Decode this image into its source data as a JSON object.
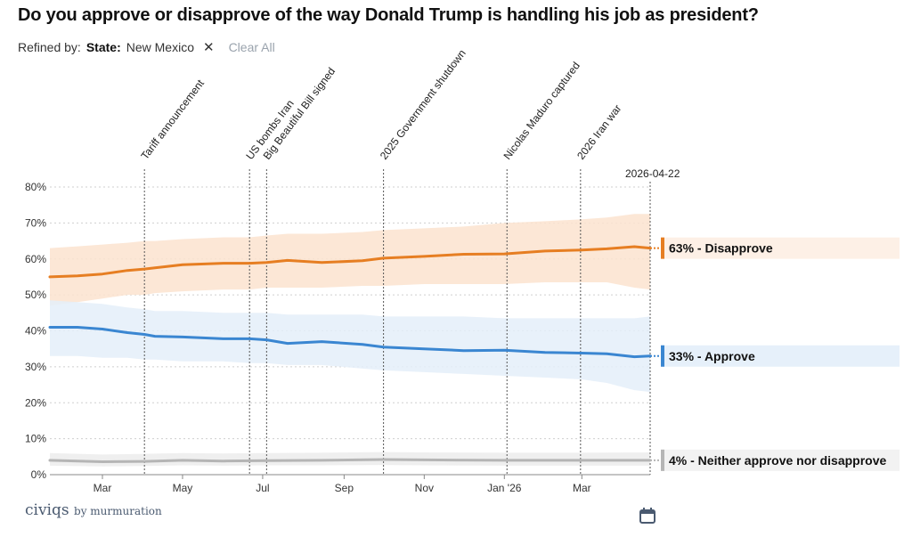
{
  "title": "Do you approve or disapprove of the way Donald Trump is handling his job as president?",
  "refine": {
    "label": "Refined by:",
    "filter_key": "State:",
    "filter_value": "New Mexico",
    "close_glyph": "✕",
    "clear_all": "Clear All"
  },
  "logo": {
    "brand": "civiqs",
    "byline": "by murmuration"
  },
  "chart_data": {
    "type": "line",
    "title": "Do you approve or disapprove of the way Donald Trump is handling his job as president?",
    "x_start": "2025-01-20",
    "x_end": "2026-04-22",
    "end_date_label": "2026-04-22",
    "ylim": [
      0,
      80
    ],
    "y_ticks": [
      0,
      10,
      20,
      30,
      40,
      50,
      60,
      70,
      80
    ],
    "y_tick_labels": [
      "0%",
      "10%",
      "20%",
      "30%",
      "40%",
      "50%",
      "60%",
      "70%",
      "80%"
    ],
    "x_ticks": [
      {
        "date": "2025-03-01",
        "label": "Mar"
      },
      {
        "date": "2025-05-01",
        "label": "May"
      },
      {
        "date": "2025-07-01",
        "label": "Jul"
      },
      {
        "date": "2025-09-01",
        "label": "Sep"
      },
      {
        "date": "2025-11-01",
        "label": "Nov"
      },
      {
        "date": "2026-01-01",
        "label": "Jan '26"
      },
      {
        "date": "2026-03-01",
        "label": "Mar"
      }
    ],
    "events": [
      {
        "date": "2025-04-02",
        "label": "Tariff announcement"
      },
      {
        "date": "2025-06-21",
        "label": "US bombs Iran"
      },
      {
        "date": "2025-07-04",
        "label": "Big Beautiful Bill signed"
      },
      {
        "date": "2025-10-01",
        "label": "2025 Government shutdown"
      },
      {
        "date": "2026-01-03",
        "label": "Nicolas Maduro captured"
      },
      {
        "date": "2026-02-28",
        "label": "2026 Iran war"
      }
    ],
    "series": [
      {
        "name": "Disapprove",
        "end_label": "63% - Disapprove",
        "color": "#e67e22",
        "band_color": "#fbe3cf",
        "label_bg": "#fdf0e6",
        "dates": [
          "2025-01-20",
          "2025-02-10",
          "2025-03-01",
          "2025-03-20",
          "2025-04-02",
          "2025-04-10",
          "2025-05-01",
          "2025-06-01",
          "2025-06-21",
          "2025-07-04",
          "2025-07-20",
          "2025-08-15",
          "2025-09-15",
          "2025-10-01",
          "2025-11-01",
          "2025-12-01",
          "2026-01-01",
          "2026-02-01",
          "2026-03-01",
          "2026-03-20",
          "2026-04-10",
          "2026-04-22"
        ],
        "values": [
          55.0,
          55.3,
          55.8,
          56.8,
          57.2,
          57.5,
          58.4,
          58.8,
          58.8,
          59.0,
          59.6,
          59.0,
          59.5,
          60.2,
          60.7,
          61.3,
          61.4,
          62.2,
          62.5,
          62.8,
          63.4,
          63.0
        ],
        "lower": [
          47.0,
          48.0,
          49.0,
          50.0,
          50.0,
          50.5,
          51.0,
          51.5,
          51.5,
          52.0,
          52.0,
          52.0,
          52.5,
          52.5,
          53.0,
          53.0,
          53.0,
          53.5,
          53.5,
          53.5,
          52.0,
          51.5
        ],
        "upper": [
          63.0,
          63.5,
          64.0,
          64.5,
          65.0,
          65.0,
          65.5,
          66.0,
          66.0,
          66.5,
          67.0,
          67.0,
          67.5,
          68.0,
          68.5,
          69.0,
          70.0,
          70.5,
          71.0,
          71.5,
          72.5,
          72.5
        ]
      },
      {
        "name": "Approve",
        "end_label": "33% - Approve",
        "color": "#3a86d1",
        "band_color": "#e4eef9",
        "label_bg": "#e6f0fa",
        "dates": [
          "2025-01-20",
          "2025-02-10",
          "2025-03-01",
          "2025-03-20",
          "2025-04-02",
          "2025-04-10",
          "2025-05-01",
          "2025-06-01",
          "2025-06-21",
          "2025-07-04",
          "2025-07-20",
          "2025-08-15",
          "2025-09-15",
          "2025-10-01",
          "2025-11-01",
          "2025-12-01",
          "2026-01-01",
          "2026-02-01",
          "2026-03-01",
          "2026-03-20",
          "2026-04-10",
          "2026-04-22"
        ],
        "values": [
          41.0,
          41.0,
          40.5,
          39.5,
          39.0,
          38.5,
          38.3,
          37.8,
          37.8,
          37.5,
          36.5,
          37.0,
          36.2,
          35.5,
          35.0,
          34.5,
          34.6,
          34.0,
          33.8,
          33.6,
          32.8,
          33.0
        ],
        "lower": [
          33.0,
          33.0,
          32.5,
          32.5,
          32.0,
          32.0,
          31.5,
          31.5,
          31.0,
          31.0,
          30.5,
          30.5,
          29.5,
          29.0,
          28.5,
          28.0,
          27.5,
          27.0,
          26.5,
          25.5,
          23.5,
          23.0
        ],
        "upper": [
          48.5,
          48.0,
          47.5,
          46.5,
          46.0,
          45.5,
          45.5,
          45.0,
          45.0,
          45.0,
          44.5,
          44.5,
          44.5,
          44.0,
          44.0,
          44.0,
          43.5,
          43.5,
          43.5,
          43.5,
          43.5,
          44.0
        ]
      },
      {
        "name": "Neither approve nor disapprove",
        "end_label": "4% - Neither approve nor disapprove",
        "color": "#b5b5b5",
        "band_color": "#ececec",
        "label_bg": "#f2f2f2",
        "dates": [
          "2025-01-20",
          "2025-03-01",
          "2025-04-02",
          "2025-05-01",
          "2025-06-01",
          "2025-07-04",
          "2025-08-15",
          "2025-10-01",
          "2025-11-01",
          "2026-01-01",
          "2026-02-01",
          "2026-03-01",
          "2026-04-22"
        ],
        "values": [
          4.0,
          3.6,
          3.7,
          4.0,
          3.8,
          3.9,
          4.0,
          4.2,
          4.1,
          4.0,
          4.0,
          4.0,
          4.0
        ],
        "lower": [
          2.5,
          2.3,
          2.4,
          2.6,
          2.5,
          2.6,
          2.6,
          2.7,
          2.6,
          2.5,
          2.5,
          2.5,
          2.5
        ],
        "upper": [
          6.0,
          5.6,
          5.8,
          6.0,
          5.9,
          6.0,
          6.1,
          6.3,
          6.2,
          6.1,
          6.1,
          6.1,
          6.2
        ]
      }
    ]
  }
}
